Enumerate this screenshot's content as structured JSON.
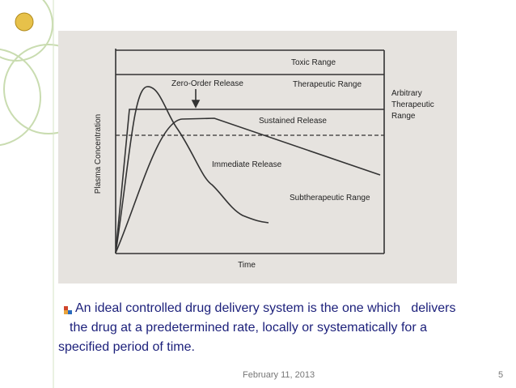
{
  "slide": {
    "figure": {
      "y_axis_label": "Plasma Concentration",
      "x_axis_label": "Time",
      "labels": {
        "toxic": "Toxic Range",
        "zero_order": "Zero-Order Release",
        "therapeutic": "Therapeutic Range",
        "arbitrary": [
          "Arbitrary",
          "Therapeutic",
          "Range"
        ],
        "sustained": "Sustained Release",
        "immediate": "Immediate Release",
        "subtherapeutic": "Subtherapeutic Range"
      }
    },
    "body": {
      "lines": [
        "An ideal controlled drug delivery system is the one which   delivers",
        "the drug at a predetermined rate, locally or systematically for a",
        "specified period of time."
      ]
    },
    "footer": {
      "date": "February 11, 2013",
      "page": 5
    }
  }
}
